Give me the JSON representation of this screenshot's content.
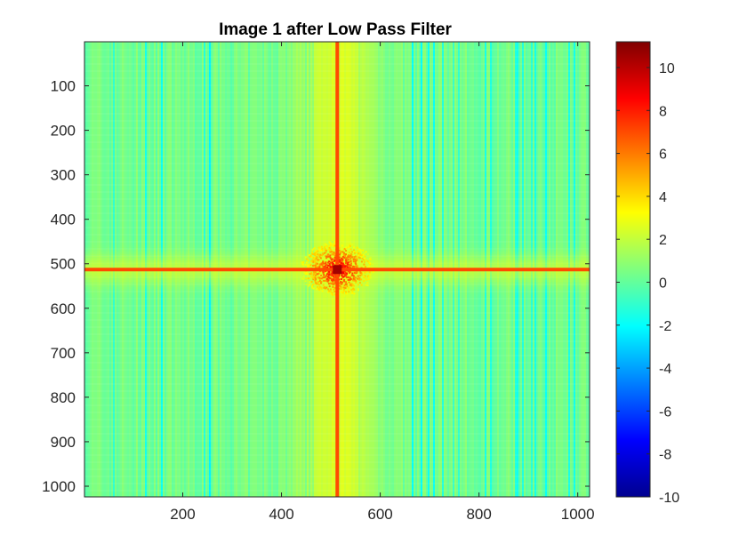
{
  "chart_data": {
    "type": "heatmap",
    "title": "Image 1 after Low Pass Filter",
    "xlabel": "",
    "ylabel": "",
    "xlim": [
      1,
      1024
    ],
    "ylim": [
      1,
      1024
    ],
    "y_reversed": true,
    "x_ticks": [
      200,
      400,
      600,
      800,
      1000
    ],
    "y_ticks": [
      100,
      200,
      300,
      400,
      500,
      600,
      700,
      800,
      900,
      1000
    ],
    "colormap": "jet",
    "colorbar": {
      "range": [
        -10,
        11.2
      ],
      "ticks": [
        -10,
        -8,
        -6,
        -4,
        -2,
        0,
        2,
        4,
        6,
        8,
        10
      ],
      "location": "right"
    },
    "description_values": {
      "background_level": 0.3,
      "center": [
        513,
        513
      ],
      "center_peak": 9.5,
      "cross_line_level": 7.0,
      "bright_band_x_range": [
        450,
        600
      ],
      "bright_band_level": 2.5
    }
  }
}
